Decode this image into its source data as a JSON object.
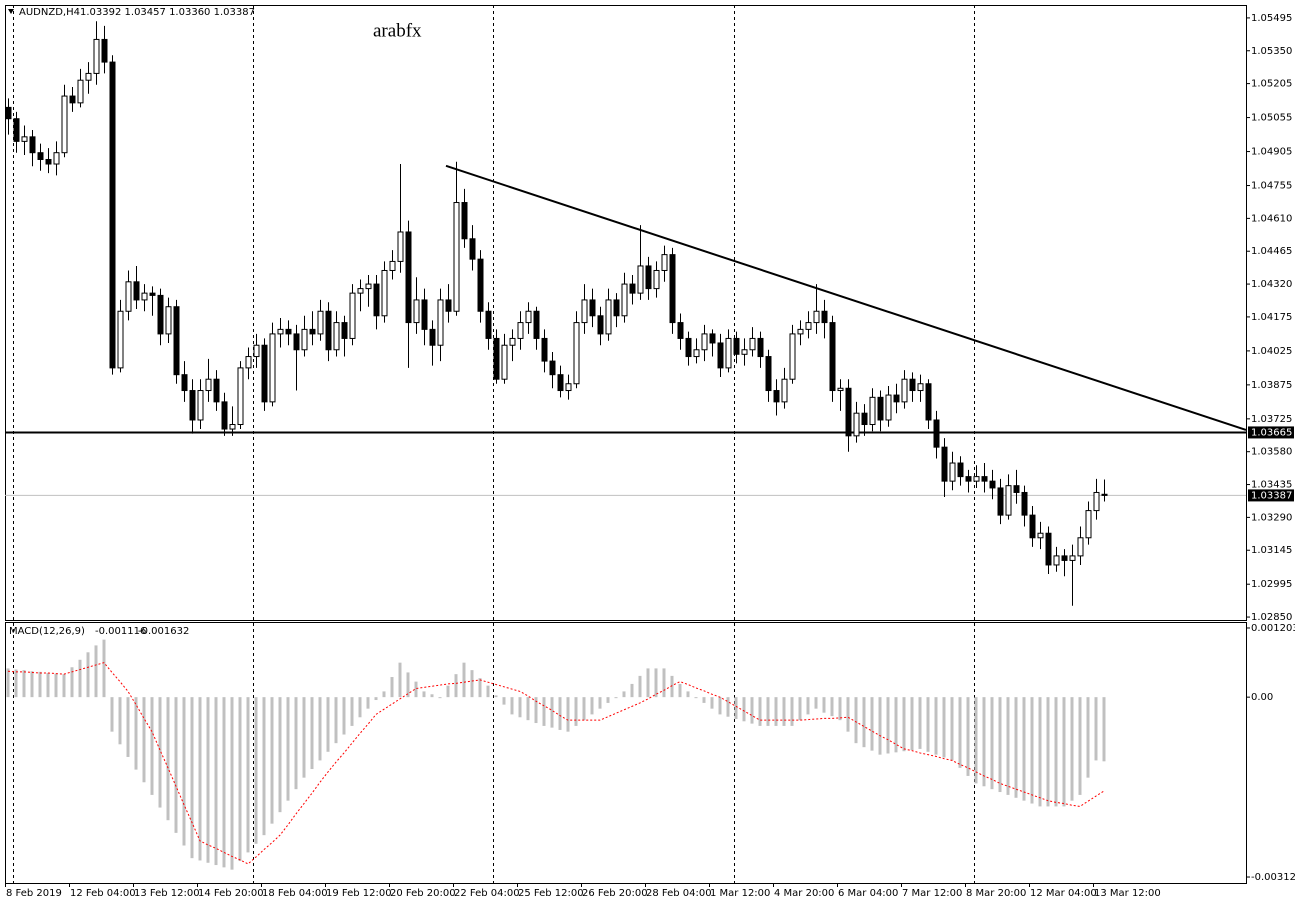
{
  "chart_data": {
    "type": "candlestick",
    "symbol": "AUDNZD,H4",
    "ohlc_text": "1.03392 1.03457 1.03360 1.03387",
    "watermark": "arabfx",
    "categories": [
      "8 Feb 2019",
      "12 Feb 04:00",
      "13 Feb 12:00",
      "14 Feb 20:00",
      "18 Feb 04:00",
      "19 Feb 12:00",
      "20 Feb 20:00",
      "22 Feb 04:00",
      "25 Feb 12:00",
      "26 Feb 20:00",
      "28 Feb 04:00",
      "1 Mar 12:00",
      "4 Mar 20:00",
      "6 Mar 04:00",
      "7 Mar 12:00",
      "8 Mar 20:00",
      "12 Mar 04:00",
      "13 Mar 12:00"
    ],
    "ylim": [
      1.02837,
      1.05552
    ],
    "yticks": [
      1.05495,
      {
        "value": 1.0535,
        "label": "1.05350"
      },
      1.05205,
      1.05055,
      1.04905,
      1.04755,
      {
        "value": 1.0461,
        "label": "1.04610"
      },
      1.04465,
      {
        "value": 1.0432,
        "label": "1.04320"
      },
      1.04175,
      1.04025,
      1.03875,
      1.03725,
      {
        "value": 1.0358,
        "label": "1.03580"
      },
      1.03435,
      {
        "value": 1.0329,
        "label": "1.03290"
      },
      1.03145,
      1.02995,
      {
        "value": 1.0285,
        "label": "1.02850"
      }
    ],
    "support_level": 1.03665,
    "trendline": {
      "x": [
        54.75,
        154.75
      ],
      "y": [
        1.04842,
        1.03676
      ]
    },
    "candles": [
      [
        1.051,
        1.0514,
        1.0498,
        1.0505
      ],
      [
        1.0505,
        1.0508,
        1.049,
        1.0495
      ],
      [
        1.0495,
        1.0502,
        1.0489,
        1.0497
      ],
      [
        1.0497,
        1.05,
        1.0484,
        1.049
      ],
      [
        1.049,
        1.0494,
        1.0482,
        1.0487
      ],
      [
        1.0487,
        1.0492,
        1.0481,
        1.0485
      ],
      [
        1.0485,
        1.0495,
        1.048,
        1.049
      ],
      [
        1.049,
        1.052,
        1.0488,
        1.0515
      ],
      [
        1.0515,
        1.0519,
        1.0508,
        1.0512
      ],
      [
        1.0512,
        1.0527,
        1.051,
        1.0522
      ],
      [
        1.0522,
        1.053,
        1.0516,
        1.0525
      ],
      [
        1.0525,
        1.0548,
        1.052,
        1.054
      ],
      [
        1.054,
        1.0546,
        1.0525,
        1.053
      ],
      [
        1.053,
        1.0533,
        1.0392,
        1.0395
      ],
      [
        1.0395,
        1.0425,
        1.0393,
        1.042
      ],
      [
        1.042,
        1.0438,
        1.0416,
        1.0433
      ],
      [
        1.0433,
        1.044,
        1.0421,
        1.0425
      ],
      [
        1.0425,
        1.0432,
        1.042,
        1.0428
      ],
      [
        1.0428,
        1.0431,
        1.0418,
        1.0427
      ],
      [
        1.0427,
        1.043,
        1.0405,
        1.041
      ],
      [
        1.041,
        1.0426,
        1.0406,
        1.0422
      ],
      [
        1.0422,
        1.0425,
        1.0388,
        1.0392
      ],
      [
        1.0392,
        1.0398,
        1.038,
        1.0385
      ],
      [
        1.0385,
        1.039,
        1.0366,
        1.0372
      ],
      [
        1.0372,
        1.039,
        1.0368,
        1.0385
      ],
      [
        1.0385,
        1.0399,
        1.038,
        1.039
      ],
      [
        1.039,
        1.0394,
        1.0376,
        1.038
      ],
      [
        1.038,
        1.0384,
        1.0365,
        1.0368
      ],
      [
        1.0368,
        1.0378,
        1.0365,
        1.037
      ],
      [
        1.037,
        1.0398,
        1.0368,
        1.0395
      ],
      [
        1.0395,
        1.0404,
        1.039,
        1.04
      ],
      [
        1.04,
        1.041,
        1.0395,
        1.0405
      ],
      [
        1.0405,
        1.0408,
        1.0376,
        1.038
      ],
      [
        1.038,
        1.0415,
        1.0378,
        1.041
      ],
      [
        1.041,
        1.0417,
        1.0404,
        1.0412
      ],
      [
        1.0412,
        1.0416,
        1.0405,
        1.041
      ],
      [
        1.041,
        1.0414,
        1.0385,
        1.0403
      ],
      [
        1.0403,
        1.0418,
        1.04,
        1.0412
      ],
      [
        1.0412,
        1.042,
        1.0405,
        1.041
      ],
      [
        1.041,
        1.0425,
        1.0407,
        1.042
      ],
      [
        1.042,
        1.0424,
        1.0398,
        1.0403
      ],
      [
        1.0403,
        1.042,
        1.04,
        1.0415
      ],
      [
        1.0415,
        1.0418,
        1.04,
        1.0408
      ],
      [
        1.0408,
        1.0432,
        1.0405,
        1.0428
      ],
      [
        1.0428,
        1.0434,
        1.042,
        1.043
      ],
      [
        1.043,
        1.0436,
        1.0422,
        1.0432
      ],
      [
        1.0432,
        1.0436,
        1.0412,
        1.0418
      ],
      [
        1.0418,
        1.0442,
        1.0415,
        1.0438
      ],
      [
        1.0438,
        1.0447,
        1.0434,
        1.0442
      ],
      [
        1.0442,
        1.0485,
        1.0437,
        1.0455
      ],
      [
        1.0455,
        1.046,
        1.0395,
        1.0415
      ],
      [
        1.0415,
        1.0435,
        1.041,
        1.0425
      ],
      [
        1.0425,
        1.043,
        1.0405,
        1.0412
      ],
      [
        1.0412,
        1.0416,
        1.0396,
        1.0405
      ],
      [
        1.0405,
        1.043,
        1.0398,
        1.0425
      ],
      [
        1.0425,
        1.0432,
        1.0415,
        1.042
      ],
      [
        1.042,
        1.0486,
        1.0418,
        1.0468
      ],
      [
        1.0468,
        1.0474,
        1.0448,
        1.0452
      ],
      [
        1.0452,
        1.0458,
        1.0438,
        1.0443
      ],
      [
        1.0443,
        1.0447,
        1.0415,
        1.042
      ],
      [
        1.042,
        1.0424,
        1.0403,
        1.0408
      ],
      [
        1.0408,
        1.0412,
        1.0388,
        1.039
      ],
      [
        1.039,
        1.041,
        1.0388,
        1.0405
      ],
      [
        1.0405,
        1.0412,
        1.0398,
        1.0408
      ],
      [
        1.0408,
        1.042,
        1.0403,
        1.0415
      ],
      [
        1.0415,
        1.0424,
        1.041,
        1.042
      ],
      [
        1.042,
        1.0422,
        1.0403,
        1.0408
      ],
      [
        1.0408,
        1.0412,
        1.0393,
        1.0398
      ],
      [
        1.0398,
        1.0402,
        1.0386,
        1.0392
      ],
      [
        1.0392,
        1.0396,
        1.0382,
        1.0385
      ],
      [
        1.0385,
        1.0392,
        1.0381,
        1.0388
      ],
      [
        1.0388,
        1.042,
        1.0386,
        1.0415
      ],
      [
        1.0415,
        1.0432,
        1.041,
        1.0425
      ],
      [
        1.0425,
        1.043,
        1.0413,
        1.0418
      ],
      [
        1.0418,
        1.0422,
        1.0405,
        1.041
      ],
      [
        1.041,
        1.043,
        1.0407,
        1.0425
      ],
      [
        1.0425,
        1.0428,
        1.0413,
        1.0418
      ],
      [
        1.0418,
        1.0437,
        1.0415,
        1.0432
      ],
      [
        1.0432,
        1.0436,
        1.0423,
        1.0428
      ],
      [
        1.0428,
        1.0458,
        1.0425,
        1.044
      ],
      [
        1.044,
        1.0444,
        1.0425,
        1.043
      ],
      [
        1.043,
        1.0442,
        1.0426,
        1.0438
      ],
      [
        1.0438,
        1.0449,
        1.0433,
        1.0445
      ],
      [
        1.0445,
        1.0448,
        1.041,
        1.0415
      ],
      [
        1.0415,
        1.0419,
        1.0403,
        1.0408
      ],
      [
        1.0408,
        1.0411,
        1.0396,
        1.04
      ],
      [
        1.04,
        1.0408,
        1.0397,
        1.0403
      ],
      [
        1.0403,
        1.0414,
        1.0398,
        1.041
      ],
      [
        1.041,
        1.0412,
        1.04,
        1.0406
      ],
      [
        1.0406,
        1.041,
        1.0391,
        1.0395
      ],
      [
        1.0395,
        1.0412,
        1.0393,
        1.0408
      ],
      [
        1.0408,
        1.0411,
        1.0397,
        1.0401
      ],
      [
        1.0401,
        1.0408,
        1.0396,
        1.0403
      ],
      [
        1.0403,
        1.0413,
        1.04,
        1.0408
      ],
      [
        1.0408,
        1.0411,
        1.0395,
        1.04
      ],
      [
        1.04,
        1.0403,
        1.038,
        1.0385
      ],
      [
        1.0385,
        1.039,
        1.0374,
        1.038
      ],
      [
        1.038,
        1.0395,
        1.0377,
        1.039
      ],
      [
        1.039,
        1.0414,
        1.0388,
        1.041
      ],
      [
        1.041,
        1.0416,
        1.0405,
        1.0412
      ],
      [
        1.0412,
        1.042,
        1.0408,
        1.0415
      ],
      [
        1.0415,
        1.0432,
        1.041,
        1.042
      ],
      [
        1.042,
        1.0425,
        1.0408,
        1.0415
      ],
      [
        1.0415,
        1.0418,
        1.038,
        1.0385
      ],
      [
        1.0385,
        1.039,
        1.0376,
        1.0386
      ],
      [
        1.0386,
        1.039,
        1.0358,
        1.0365
      ],
      [
        1.0365,
        1.038,
        1.0362,
        1.0375
      ],
      [
        1.0375,
        1.0379,
        1.0365,
        1.037
      ],
      [
        1.037,
        1.0386,
        1.0367,
        1.0382
      ],
      [
        1.0382,
        1.0385,
        1.0367,
        1.0372
      ],
      [
        1.0372,
        1.0387,
        1.0369,
        1.0383
      ],
      [
        1.0383,
        1.0388,
        1.0375,
        1.038
      ],
      [
        1.038,
        1.0394,
        1.0377,
        1.039
      ],
      [
        1.039,
        1.0393,
        1.038,
        1.0385
      ],
      [
        1.0385,
        1.0392,
        1.038,
        1.0388
      ],
      [
        1.0388,
        1.039,
        1.0368,
        1.0372
      ],
      [
        1.0372,
        1.0376,
        1.0355,
        1.036
      ],
      [
        1.036,
        1.0364,
        1.0338,
        1.0345
      ],
      [
        1.0345,
        1.0358,
        1.0341,
        1.0353
      ],
      [
        1.0353,
        1.0356,
        1.0343,
        1.0347
      ],
      [
        1.0347,
        1.035,
        1.034,
        1.0345
      ],
      [
        1.0345,
        1.0352,
        1.0342,
        1.0347
      ],
      [
        1.0347,
        1.0353,
        1.034,
        1.0345
      ],
      [
        1.0345,
        1.035,
        1.0337,
        1.0342
      ],
      [
        1.0342,
        1.0346,
        1.0326,
        1.033
      ],
      [
        1.033,
        1.0348,
        1.0328,
        1.0343
      ],
      [
        1.0343,
        1.035,
        1.0335,
        1.034
      ],
      [
        1.034,
        1.0343,
        1.0325,
        1.033
      ],
      [
        1.033,
        1.0334,
        1.0316,
        1.032
      ],
      [
        1.032,
        1.0327,
        1.0315,
        1.0322
      ],
      [
        1.0322,
        1.0325,
        1.0304,
        1.0308
      ],
      [
        1.0308,
        1.0316,
        1.0305,
        1.0312
      ],
      [
        1.0312,
        1.0315,
        1.0303,
        1.031
      ],
      [
        1.031,
        1.0317,
        1.029,
        1.0312
      ],
      [
        1.0312,
        1.0325,
        1.0308,
        1.032
      ],
      [
        1.032,
        1.0336,
        1.0317,
        1.0332
      ],
      [
        1.0332,
        1.0346,
        1.0328,
        1.034
      ],
      [
        1.03392,
        1.03457,
        1.0336,
        1.03387
      ]
    ],
    "macd": {
      "name": "MACD(12,26,9)",
      "ylim": [
        -0.003232,
        0.001307
      ],
      "yticks": [
        0.001203,
        {
          "value": 0,
          "label": "0.00"
        },
        -0.003128
      ],
      "hist_color": "#c0c0c0",
      "signal_color": "#ff0000",
      "values": [
        0.0005,
        0.00048,
        0.00047,
        0.00045,
        0.00044,
        0.00042,
        0.00041,
        0.0004,
        0.00052,
        0.00065,
        0.00078,
        0.0009,
        0.001,
        -0.0006,
        -0.00082,
        -0.00104,
        -0.00126,
        -0.00148,
        -0.0017,
        -0.00192,
        -0.00214,
        -0.00236,
        -0.00258,
        -0.0028,
        -0.00284,
        -0.00288,
        -0.00292,
        -0.00296,
        -0.003,
        -0.00285,
        -0.0027,
        -0.00255,
        -0.0024,
        -0.0022,
        -0.002,
        -0.0018,
        -0.0016,
        -0.0014,
        -0.00125,
        -0.0011,
        -0.00095,
        -0.0008,
        -0.00065,
        -0.0005,
        -0.00035,
        -0.0002,
        -5e-05,
        0.0001,
        0.00035,
        0.0006,
        0.00043,
        0.00027,
        0.0001,
        5e-05,
        0,
        0.0002,
        0.0004,
        0.0006,
        0.00047,
        0.00033,
        0.0002,
        3e-05,
        -0.00013,
        -0.0003,
        -0.00035,
        -0.0004,
        -0.00045,
        -0.0005,
        -0.00053,
        -0.00057,
        -0.0006,
        -0.0005,
        -0.0004,
        -0.0003,
        -0.0002,
        -0.0001,
        0,
        0.0001,
        0.00023,
        0.00037,
        0.0005,
        0.0005,
        0.0005,
        0.00037,
        0.00023,
        0.0001,
        0,
        -0.0001,
        -0.0002,
        -0.0003,
        -0.00034,
        -0.00038,
        -0.00042,
        -0.00046,
        -0.0005,
        -0.0005,
        -0.0005,
        -0.0005,
        -0.0005,
        -0.0004,
        -0.0003,
        -0.0002,
        -0.00027,
        -0.00033,
        -0.0004,
        -0.0006,
        -0.0008,
        -0.00087,
        -0.00093,
        -0.001,
        -0.00098,
        -0.00096,
        -0.00094,
        -0.00092,
        -0.0009,
        -0.00095,
        -0.001,
        -0.00105,
        -0.0011,
        -0.00123,
        -0.00137,
        -0.0015,
        -0.00155,
        -0.0016,
        -0.00165,
        -0.0017,
        -0.00175,
        -0.0018,
        -0.00185,
        -0.0019,
        -0.0019,
        -0.0019,
        -0.0019,
        -0.0018,
        -0.0017,
        -0.0014,
        -0.0011,
        -0.001116
      ],
      "signal": [
        0.00045,
        0.00044,
        0.00044,
        0.00043,
        0.00042,
        0.00042,
        0.00041,
        0.0004,
        0.00044,
        0.00048,
        0.00052,
        0.00056,
        0.0006,
        0.00043,
        0.00027,
        0.0001,
        -0.00013,
        -0.00037,
        -0.0006,
        -0.00092,
        -0.00123,
        -0.00155,
        -0.00187,
        -0.00218,
        -0.0025,
        -0.00257,
        -0.00263,
        -0.0027,
        -0.00277,
        -0.00283,
        -0.0029,
        -0.00278,
        -0.00265,
        -0.00253,
        -0.0024,
        -0.00222,
        -0.00203,
        -0.00185,
        -0.00167,
        -0.00148,
        -0.0013,
        -0.00113,
        -0.00097,
        -0.0008,
        -0.00063,
        -0.00047,
        -0.0003,
        -0.00021,
        -0.00012,
        -3e-05,
        6e-05,
        0.00015,
        0.00017,
        0.00019,
        0.00021,
        0.00023,
        0.00024,
        0.00026,
        0.00028,
        0.0003,
        0.00026,
        0.00022,
        0.00018,
        0.00014,
        0.0001,
        2e-05,
        -7e-05,
        -0.00015,
        -0.00023,
        -0.00032,
        -0.0004,
        -0.0004,
        -0.0004,
        -0.0004,
        -0.0004,
        -0.00034,
        -0.00028,
        -0.00022,
        -0.00016,
        -0.0001,
        -3e-05,
        5e-05,
        0.00012,
        0.0002,
        0.00027,
        0.00022,
        0.00016,
        0.00011,
        5e-05,
        0,
        -8e-05,
        -0.00016,
        -0.00024,
        -0.00032,
        -0.0004,
        -0.0004,
        -0.0004,
        -0.0004,
        -0.0004,
        -0.0004,
        -0.00039,
        -0.00038,
        -0.00037,
        -0.00037,
        -0.00036,
        -0.00035,
        -0.00043,
        -0.00051,
        -0.00059,
        -0.00067,
        -0.00074,
        -0.00082,
        -0.0009,
        -0.00093,
        -0.00097,
        -0.001,
        -0.00103,
        -0.00107,
        -0.0011,
        -0.00117,
        -0.00123,
        -0.0013,
        -0.00137,
        -0.00143,
        -0.0015,
        -0.00155,
        -0.0016,
        -0.00165,
        -0.0017,
        -0.00175,
        -0.0018,
        -0.00183,
        -0.00185,
        -0.00188,
        -0.0019,
        -0.00181,
        -0.00172,
        -0.001632
      ]
    }
  }
}
